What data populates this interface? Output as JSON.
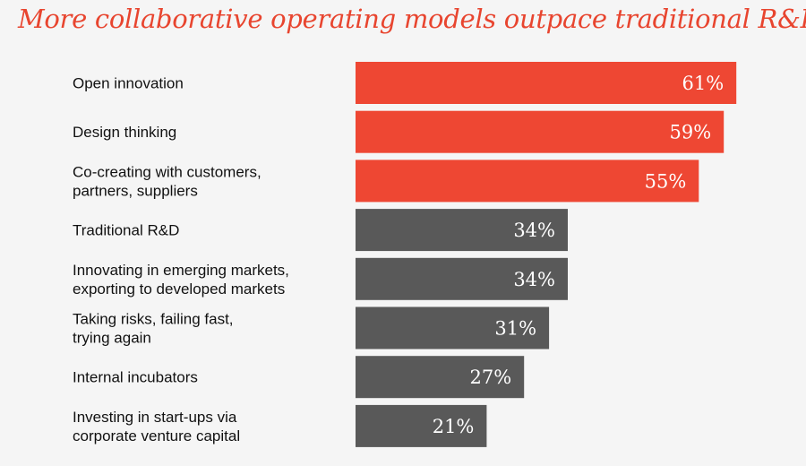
{
  "chart_data": {
    "type": "bar",
    "orientation": "horizontal",
    "title": "More collaborative operating models outpace traditional R&D",
    "xlabel": "",
    "ylabel": "",
    "xlim": [
      0,
      100
    ],
    "grid": false,
    "legend": "none",
    "value_format": "{v}%",
    "categories": [
      [
        "Open innovation"
      ],
      [
        "Design thinking"
      ],
      [
        "Co-creating with customers,",
        "partners, suppliers"
      ],
      [
        "Traditional R&D"
      ],
      [
        "Innovating in emerging markets,",
        "exporting to developed markets"
      ],
      [
        "Taking risks, failing fast,",
        "trying again"
      ],
      [
        "Internal incubators"
      ],
      [
        "Investing in start-ups via",
        "corporate venture capital"
      ]
    ],
    "values": [
      61,
      59,
      55,
      34,
      34,
      31,
      27,
      21
    ],
    "value_labels": [
      "61%",
      "59%",
      "55%",
      "34%",
      "34%",
      "31%",
      "27%",
      "21%"
    ],
    "groups": [
      "collaborative",
      "collaborative",
      "collaborative",
      "traditional",
      "traditional",
      "traditional",
      "traditional",
      "traditional"
    ],
    "colors": {
      "collaborative": "#ee4733",
      "traditional": "#595959",
      "title": "#e8452f",
      "background": "#f5f5f5"
    }
  }
}
